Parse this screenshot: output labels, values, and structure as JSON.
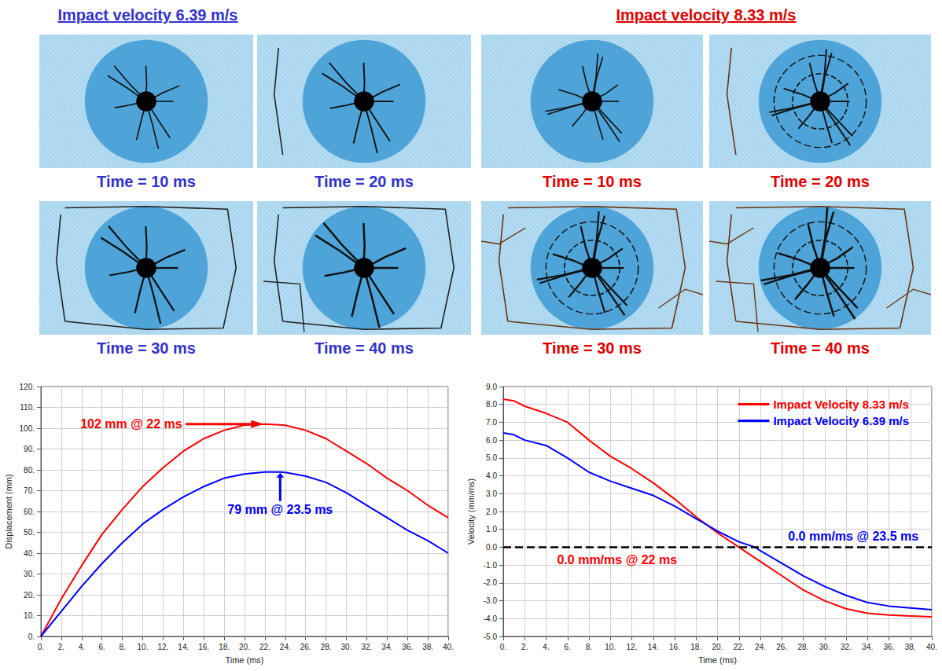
{
  "figure": {
    "groups": [
      {
        "title": "Impact velocity 6.39 m/s",
        "color": "#3333cc",
        "panels": [
          "Time = 10 ms",
          "Time = 20 ms",
          "Time = 30 ms",
          "Time = 40 ms"
        ]
      },
      {
        "title": "Impact velocity 8.33 m/s",
        "color": "#e00000",
        "panels": [
          "Time = 10 ms",
          "Time = 20 ms",
          "Time = 30 ms",
          "Time = 40 ms"
        ]
      }
    ]
  },
  "chart_data": [
    {
      "type": "line",
      "x_label": "Time (ms)",
      "y_label": "Displacement (mm)",
      "grid": true,
      "xlim": [
        0,
        40
      ],
      "xticks": [
        {
          "value": 0,
          "label": "0."
        },
        {
          "value": 2,
          "label": "2."
        },
        {
          "value": 4,
          "label": "4."
        },
        {
          "value": 6,
          "label": "6."
        },
        {
          "value": 8,
          "label": "8."
        },
        {
          "value": 10,
          "label": "10."
        },
        {
          "value": 12,
          "label": "12."
        },
        {
          "value": 14,
          "label": "14."
        },
        {
          "value": 16,
          "label": "16."
        },
        {
          "value": 18,
          "label": "18."
        },
        {
          "value": 20,
          "label": "20."
        },
        {
          "value": 22,
          "label": "22."
        },
        {
          "value": 24,
          "label": "24."
        },
        {
          "value": 26,
          "label": "26."
        },
        {
          "value": 28,
          "label": "28."
        },
        {
          "value": 30,
          "label": "30."
        },
        {
          "value": 32,
          "label": "32."
        },
        {
          "value": 34,
          "label": "34."
        },
        {
          "value": 36,
          "label": "36."
        },
        {
          "value": 38,
          "label": "38."
        },
        {
          "value": 40,
          "label": "40."
        }
      ],
      "ylim": [
        0,
        120
      ],
      "yticks": [
        {
          "value": 0,
          "label": "0."
        },
        {
          "value": 10,
          "label": "10."
        },
        {
          "value": 20,
          "label": "20."
        },
        {
          "value": 30,
          "label": "30."
        },
        {
          "value": 40,
          "label": "40."
        },
        {
          "value": 50,
          "label": "50."
        },
        {
          "value": 60,
          "label": "60."
        },
        {
          "value": 70,
          "label": "70."
        },
        {
          "value": 80,
          "label": "80."
        },
        {
          "value": 90,
          "label": "90."
        },
        {
          "value": 100,
          "label": "100."
        },
        {
          "value": 110,
          "label": "110."
        },
        {
          "value": 120,
          "label": "120."
        }
      ],
      "x": [
        0,
        2,
        4,
        6,
        8,
        10,
        12,
        14,
        16,
        18,
        20,
        22,
        23.5,
        24,
        26,
        28,
        30,
        32,
        34,
        36,
        38,
        40
      ],
      "series": [
        {
          "color": "#ff0000",
          "values": [
            0,
            18,
            34,
            49,
            61,
            72,
            81,
            89,
            95,
            99,
            101.5,
            102,
            101.6,
            101.4,
            99,
            95,
            89,
            83,
            76,
            70,
            63,
            57
          ]
        },
        {
          "color": "#0000ff",
          "values": [
            0,
            12,
            24,
            35,
            45,
            54,
            61,
            67,
            72,
            76,
            78,
            79,
            79,
            78.8,
            77,
            74,
            69,
            63,
            57,
            51,
            46,
            40
          ]
        }
      ],
      "annotations": [
        {
          "text": "102 mm @ 22 ms",
          "x": 22,
          "y": 102,
          "color": "#ff0000",
          "marker": "arrow"
        },
        {
          "text": "79 mm @ 23.5 ms",
          "x": 23.5,
          "y": 79,
          "color": "#0000ff",
          "marker": "arrow"
        }
      ]
    },
    {
      "type": "line",
      "x_label": "Time (ms)",
      "y_label": "Velocity (mm/ms)",
      "grid": true,
      "legend": "upper right",
      "xlim": [
        0,
        40
      ],
      "xticks": [
        {
          "value": 0,
          "label": "0."
        },
        {
          "value": 2,
          "label": "2."
        },
        {
          "value": 4,
          "label": "4."
        },
        {
          "value": 6,
          "label": "6."
        },
        {
          "value": 8,
          "label": "8."
        },
        {
          "value": 10,
          "label": "10."
        },
        {
          "value": 12,
          "label": "12."
        },
        {
          "value": 14,
          "label": "14."
        },
        {
          "value": 16,
          "label": "16."
        },
        {
          "value": 18,
          "label": "18."
        },
        {
          "value": 20,
          "label": "20."
        },
        {
          "value": 22,
          "label": "22."
        },
        {
          "value": 24,
          "label": "24."
        },
        {
          "value": 26,
          "label": "26."
        },
        {
          "value": 28,
          "label": "28."
        },
        {
          "value": 30,
          "label": "30."
        },
        {
          "value": 32,
          "label": "32."
        },
        {
          "value": 34,
          "label": "34."
        },
        {
          "value": 36,
          "label": "36."
        },
        {
          "value": 38,
          "label": "38."
        },
        {
          "value": 40,
          "label": "40."
        }
      ],
      "ylim": [
        -5,
        9
      ],
      "yticks": [
        {
          "value": -5,
          "label": "-5.0"
        },
        {
          "value": -4,
          "label": "-4.0"
        },
        {
          "value": -3,
          "label": "-3.0"
        },
        {
          "value": -2,
          "label": "-2.0"
        },
        {
          "value": -1,
          "label": "-1.0"
        },
        {
          "value": 0,
          "label": "0.0"
        },
        {
          "value": 1,
          "label": "1.0"
        },
        {
          "value": 2,
          "label": "2.0"
        },
        {
          "value": 3,
          "label": "3.0"
        },
        {
          "value": 4,
          "label": "4.0"
        },
        {
          "value": 5,
          "label": "5.0"
        },
        {
          "value": 6,
          "label": "6.0"
        },
        {
          "value": 7,
          "label": "7.0"
        },
        {
          "value": 8,
          "label": "8.0"
        },
        {
          "value": 9,
          "label": "9.0"
        }
      ],
      "x": [
        0,
        1,
        2,
        4,
        6,
        8,
        10,
        12,
        14,
        16,
        18,
        20,
        22,
        23.5,
        24,
        26,
        28,
        30,
        32,
        34,
        36,
        38,
        40
      ],
      "series": [
        {
          "name": "Impact Velocity 8.33 m/s",
          "color": "#ff0000",
          "values": [
            8.3,
            8.2,
            7.9,
            7.5,
            7.0,
            6.0,
            5.1,
            4.4,
            3.6,
            2.7,
            1.7,
            0.8,
            0.0,
            -0.6,
            -0.8,
            -1.6,
            -2.4,
            -3.0,
            -3.45,
            -3.7,
            -3.8,
            -3.85,
            -3.9
          ]
        },
        {
          "name": "Impact Velocity 6.39 m/s",
          "color": "#0000ff",
          "values": [
            6.4,
            6.3,
            6.0,
            5.7,
            5.0,
            4.2,
            3.7,
            3.3,
            2.9,
            2.3,
            1.6,
            0.9,
            0.3,
            0.0,
            -0.2,
            -0.9,
            -1.6,
            -2.2,
            -2.7,
            -3.1,
            -3.3,
            -3.4,
            -3.5
          ]
        }
      ],
      "hlines": [
        {
          "y": 0,
          "color": "#000000",
          "line_style": "dashed"
        }
      ],
      "annotations": [
        {
          "text": "0.0 mm/ms @ 23.5 ms",
          "x": 23.5,
          "y": 0,
          "color": "#0000ff"
        },
        {
          "text": "0.0 mm/ms @ 22 ms",
          "x": 22,
          "y": 0,
          "color": "#ff0000"
        }
      ]
    }
  ]
}
